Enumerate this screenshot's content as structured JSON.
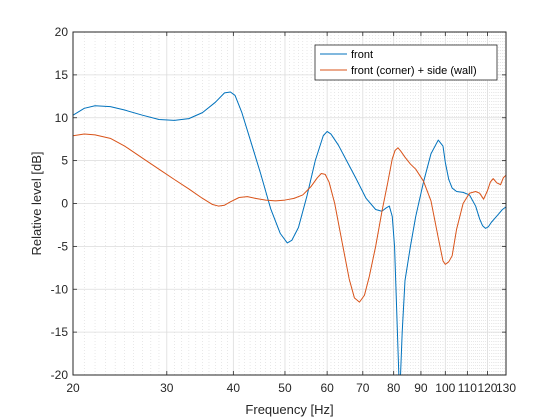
{
  "chart_data": {
    "type": "line",
    "title": "",
    "xlabel": "Frequency [Hz]",
    "ylabel": "Relative level [dB]",
    "xscale": "log",
    "xlim": [
      20,
      130
    ],
    "ylim": [
      -20,
      20
    ],
    "grid": "on (major and minor)",
    "legend_position": "top-right",
    "x_ticks": [
      20,
      30,
      40,
      50,
      60,
      70,
      80,
      90,
      100,
      110,
      120,
      130
    ],
    "x_tick_labels": [
      "20",
      "30",
      "40",
      "50",
      "60",
      "70",
      "80",
      "90",
      "100",
      "110",
      "120",
      "130"
    ],
    "y_ticks": [
      -20,
      -15,
      -10,
      -5,
      0,
      5,
      10,
      15,
      20
    ],
    "y_tick_labels": [
      "-20",
      "-15",
      "-10",
      "-5",
      "0",
      "5",
      "10",
      "15",
      "20"
    ],
    "series": [
      {
        "name": "front",
        "color": "#0072BD",
        "x": [
          20,
          21,
          22,
          23.5,
          25,
          27,
          29,
          31,
          33,
          35,
          37,
          38.5,
          39.5,
          40.3,
          41.5,
          43,
          45,
          47,
          49,
          50.5,
          51.5,
          53,
          55,
          57,
          59,
          60,
          61,
          63,
          65,
          68,
          71,
          74,
          76,
          77.5,
          78.5,
          79.5,
          80.3,
          81,
          81.8,
          82.4,
          83,
          84,
          86,
          88,
          91,
          94,
          97,
          99,
          100,
          101.5,
          103,
          105,
          108,
          111,
          114,
          116,
          117.5,
          119,
          120.5,
          122,
          124,
          126,
          128,
          130
        ],
        "y": [
          10.3,
          11.1,
          11.4,
          11.3,
          10.9,
          10.3,
          9.8,
          9.7,
          9.9,
          10.6,
          11.8,
          12.9,
          13.0,
          12.6,
          10.6,
          7.5,
          3.5,
          -0.6,
          -3.5,
          -4.6,
          -4.3,
          -2.8,
          0.9,
          5.0,
          7.9,
          8.4,
          8.1,
          6.8,
          5.2,
          2.9,
          0.6,
          -0.7,
          -0.9,
          -0.5,
          -0.3,
          -1.5,
          -5.0,
          -12.0,
          -20.0,
          -20.0,
          -15.0,
          -9.0,
          -5.0,
          -1.5,
          2.5,
          5.8,
          7.4,
          6.7,
          4.8,
          2.8,
          1.8,
          1.4,
          1.3,
          1.0,
          -0.3,
          -1.8,
          -2.6,
          -2.9,
          -2.7,
          -2.2,
          -1.7,
          -1.2,
          -0.7,
          -0.4
        ]
      },
      {
        "name": "front (corner) + side (wall)",
        "color": "#D95319",
        "x": [
          20,
          21,
          22,
          23.5,
          25,
          27,
          29,
          31,
          33,
          35,
          36.5,
          37.5,
          38.5,
          39.5,
          41,
          42.5,
          44,
          46,
          48,
          50,
          52,
          54,
          56,
          57.5,
          58.5,
          59.5,
          60.5,
          62,
          64,
          66,
          67.5,
          69,
          70.5,
          72,
          74,
          76,
          78,
          79.5,
          80.5,
          81.5,
          82.5,
          84,
          86,
          88,
          91,
          94,
          97,
          99,
          100,
          101.5,
          103,
          105,
          108,
          111,
          114,
          116,
          118,
          120,
          121.5,
          123,
          125,
          127,
          128.5,
          130
        ],
        "y": [
          7.9,
          8.1,
          8.0,
          7.6,
          6.7,
          5.3,
          4.0,
          2.8,
          1.7,
          0.6,
          -0.1,
          -0.3,
          -0.2,
          0.2,
          0.7,
          0.8,
          0.6,
          0.4,
          0.3,
          0.4,
          0.6,
          1.0,
          2.0,
          3.0,
          3.5,
          3.4,
          2.5,
          0.0,
          -4.5,
          -8.8,
          -11.0,
          -11.5,
          -10.7,
          -8.5,
          -5.0,
          -1.0,
          2.5,
          5.2,
          6.2,
          6.5,
          6.1,
          5.4,
          4.6,
          4.0,
          2.6,
          0.3,
          -4.0,
          -6.7,
          -7.1,
          -6.8,
          -6.1,
          -3.0,
          0.0,
          1.2,
          1.4,
          1.2,
          0.5,
          1.5,
          2.5,
          2.9,
          2.4,
          2.2,
          3.0,
          3.3
        ]
      }
    ]
  }
}
